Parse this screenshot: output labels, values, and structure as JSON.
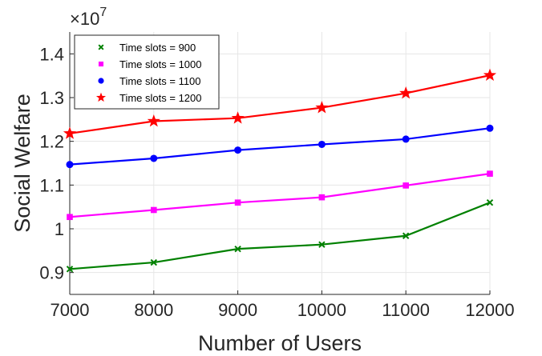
{
  "chart_data": {
    "type": "line",
    "title": "",
    "xlabel": "Number of Users",
    "ylabel": "Social Welfare",
    "x": [
      7000,
      8000,
      9000,
      10000,
      11000,
      12000
    ],
    "x_tick_labels": [
      "7000",
      "8000",
      "9000",
      "10000",
      "11000",
      "12000"
    ],
    "xlim": [
      7000,
      12000
    ],
    "y_scale_factor_label": {
      "base": "×10",
      "exponent": "7"
    },
    "ylim": [
      0.85,
      1.45
    ],
    "y_ticks": [
      0.9,
      1.0,
      1.1,
      1.2,
      1.3,
      1.4
    ],
    "y_tick_labels": [
      "0.9",
      "1",
      "1.1",
      "1.2",
      "1.3",
      "1.4"
    ],
    "y_unit_multiplier": 10000000,
    "grid": true,
    "legend_position": "top-left",
    "series": [
      {
        "name": "Time slots = 900",
        "color": "#008000",
        "marker": "x",
        "values": [
          0.908,
          0.923,
          0.954,
          0.964,
          0.984,
          1.06
        ]
      },
      {
        "name": "Time slots = 1000",
        "color": "#ff00ff",
        "marker": "square",
        "values": [
          1.027,
          1.043,
          1.06,
          1.072,
          1.099,
          1.126
        ]
      },
      {
        "name": "Time slots = 1100",
        "color": "#0000ff",
        "marker": "circle",
        "values": [
          1.147,
          1.161,
          1.18,
          1.193,
          1.205,
          1.23
        ]
      },
      {
        "name": "Time slots = 1200",
        "color": "#ff0000",
        "marker": "star",
        "values": [
          1.218,
          1.246,
          1.253,
          1.277,
          1.31,
          1.351
        ]
      }
    ]
  }
}
